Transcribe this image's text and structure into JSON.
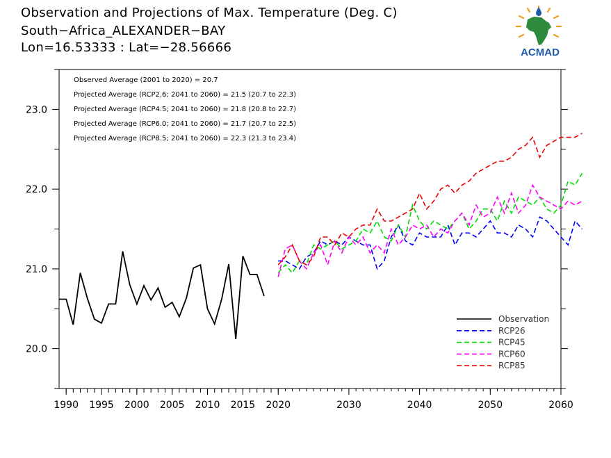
{
  "header": {
    "title_line1": "Observation and Projections of Max. Temperature (Deg. C)",
    "title_line2": "South−Africa_ALEXANDER−BAY",
    "title_line3": "Lon=16.53333 : Lat=−28.56666"
  },
  "logo": {
    "text": "ACMAD",
    "colors": {
      "africa": "#2e8b3e",
      "rays": "#f0a020",
      "text": "#1e5aa8",
      "drop": "#1e5aa8"
    }
  },
  "chart_data": {
    "type": "line",
    "xlim": [
      1989,
      2060
    ],
    "ylim": [
      19.5,
      23.5
    ],
    "x_ticks": [
      {
        "v": 1990,
        "label": "1990"
      },
      {
        "v": 1995,
        "label": "1995"
      },
      {
        "v": 2000,
        "label": "2000"
      },
      {
        "v": 2005,
        "label": "2005"
      },
      {
        "v": 2010,
        "label": "2010"
      },
      {
        "v": 2015,
        "label": "2015"
      },
      {
        "v": 2020,
        "label": "2020"
      },
      {
        "v": 2030,
        "label": "2030"
      },
      {
        "v": 2040,
        "label": "2040"
      },
      {
        "v": 2050,
        "label": "2050"
      },
      {
        "v": 2060,
        "label": "2060"
      }
    ],
    "y_ticks": [
      {
        "v": 20.0,
        "label": "20.0"
      },
      {
        "v": 21.0,
        "label": "21.0"
      },
      {
        "v": 22.0,
        "label": "22.0"
      },
      {
        "v": 23.0,
        "label": "23.0"
      }
    ],
    "annotations": [
      "Observed Average (2001 to 2020) = 20.7",
      "Projected Average (RCP2.6; 2041 to 2060) = 21.5 (20.7 to 22.3)",
      "Projected Average (RCP4.5; 2041 to 2060) = 21.8 (20.8 to 22.7)",
      "Projected Average (RCP6.0; 2041 to 2060) = 21.7 (20.7 to 22.5)",
      "Projected Average (RCP8.5; 2041 to 2060) = 22.3 (21.3 to 23.4)"
    ],
    "legend_position": "bottom-right",
    "series": [
      {
        "name": "Observation",
        "color": "#000000",
        "dashed": false,
        "x_start": 1989,
        "values": [
          20.62,
          20.62,
          20.3,
          20.95,
          20.63,
          20.37,
          20.32,
          20.56,
          20.56,
          21.22,
          20.8,
          20.56,
          20.79,
          20.61,
          20.76,
          20.52,
          20.58,
          20.4,
          20.63,
          21.01,
          21.05,
          20.5,
          20.31,
          20.62,
          21.06,
          20.12,
          21.16,
          20.93,
          20.93,
          20.66
        ]
      },
      {
        "name": "RCP26",
        "color": "#0000ff",
        "dashed": true,
        "x_start": 2020,
        "values": [
          21.1,
          21.1,
          21.05,
          21.0,
          21.15,
          21.2,
          21.35,
          21.3,
          21.35,
          21.3,
          21.4,
          21.35,
          21.3,
          21.3,
          21.0,
          21.1,
          21.4,
          21.55,
          21.35,
          21.3,
          21.45,
          21.4,
          21.4,
          21.4,
          21.55,
          21.3,
          21.45,
          21.45,
          21.4,
          21.5,
          21.6,
          21.45,
          21.45,
          21.4,
          21.55,
          21.5,
          21.4,
          21.65,
          21.6,
          21.5,
          21.4,
          21.3,
          21.6,
          21.5
        ]
      },
      {
        "name": "RCP45",
        "color": "#00dd00",
        "dashed": true,
        "x_start": 2020,
        "values": [
          20.95,
          21.05,
          20.95,
          21.1,
          21.05,
          21.3,
          21.25,
          21.3,
          21.35,
          21.25,
          21.3,
          21.35,
          21.5,
          21.45,
          21.6,
          21.4,
          21.35,
          21.55,
          21.4,
          21.8,
          21.6,
          21.5,
          21.6,
          21.55,
          21.5,
          21.6,
          21.7,
          21.5,
          21.6,
          21.75,
          21.75,
          21.6,
          21.85,
          21.7,
          21.9,
          21.85,
          21.8,
          21.9,
          21.75,
          21.7,
          21.8,
          22.1,
          22.05,
          22.2
        ]
      },
      {
        "name": "RCP60",
        "color": "#ff00ff",
        "dashed": true,
        "x_start": 2020,
        "values": [
          20.9,
          21.25,
          21.3,
          21.1,
          21.0,
          21.2,
          21.3,
          21.05,
          21.35,
          21.2,
          21.4,
          21.3,
          21.4,
          21.2,
          21.3,
          21.2,
          21.5,
          21.3,
          21.4,
          21.55,
          21.5,
          21.55,
          21.4,
          21.5,
          21.45,
          21.6,
          21.7,
          21.55,
          21.8,
          21.65,
          21.7,
          21.9,
          21.7,
          21.95,
          21.7,
          21.8,
          22.05,
          21.9,
          21.85,
          21.8,
          21.75,
          21.85,
          21.8,
          21.85
        ]
      },
      {
        "name": "RCP85",
        "color": "#ee0000",
        "dashed": true,
        "x_start": 2020,
        "values": [
          21.05,
          21.15,
          21.3,
          21.1,
          21.05,
          21.15,
          21.4,
          21.4,
          21.3,
          21.45,
          21.4,
          21.5,
          21.55,
          21.55,
          21.75,
          21.6,
          21.6,
          21.65,
          21.7,
          21.75,
          21.95,
          21.75,
          21.85,
          22.0,
          22.05,
          21.95,
          22.05,
          22.1,
          22.2,
          22.25,
          22.3,
          22.35,
          22.35,
          22.4,
          22.5,
          22.55,
          22.65,
          22.4,
          22.55,
          22.6,
          22.65,
          22.65,
          22.65,
          22.7
        ]
      }
    ]
  }
}
